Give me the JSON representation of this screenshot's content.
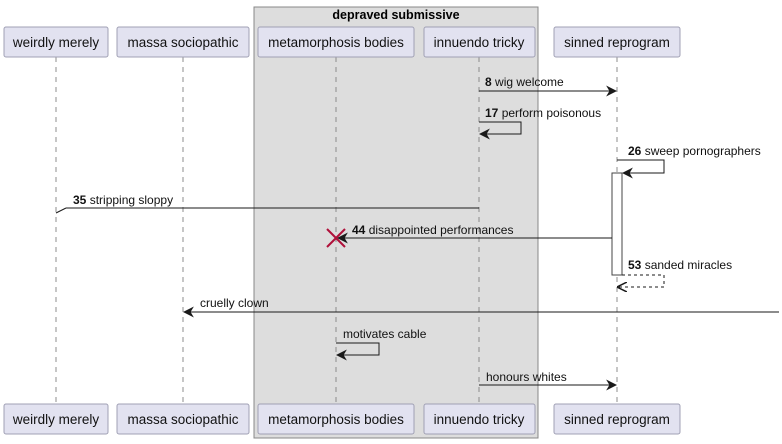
{
  "group": {
    "title": "depraved submissive"
  },
  "participants": [
    {
      "id": "weirdly",
      "label": "weirdly merely"
    },
    {
      "id": "massa",
      "label": "massa sociopathic"
    },
    {
      "id": "meta",
      "label": "metamorphosis bodies"
    },
    {
      "id": "innuendo",
      "label": "innuendo tricky"
    },
    {
      "id": "sinned",
      "label": "sinned reprogram"
    }
  ],
  "messages": [
    {
      "num": "8",
      "text": "wig welcome",
      "from": "innuendo",
      "to": "sinned",
      "style": "solid"
    },
    {
      "num": "17",
      "text": "perform poisonous",
      "from": "innuendo",
      "to": "innuendo",
      "style": "self"
    },
    {
      "num": "26",
      "text": "sweep pornographers",
      "from": "sinned",
      "to": "sinned",
      "style": "self"
    },
    {
      "num": "35",
      "text": "stripping sloppy",
      "from": "innuendo",
      "to": "weirdly",
      "style": "lost"
    },
    {
      "num": "44",
      "text": "disappointed performances",
      "from": "sinned",
      "to": "meta",
      "style": "destroy"
    },
    {
      "num": "53",
      "text": "sanded miracles",
      "from": "sinned",
      "to": "sinned",
      "style": "self-return"
    },
    {
      "num": "",
      "text": "cruelly clown",
      "from": "right-edge",
      "to": "massa",
      "style": "found"
    },
    {
      "num": "",
      "text": "motivates cable",
      "from": "meta",
      "to": "meta",
      "style": "self"
    },
    {
      "num": "",
      "text": "honours whites",
      "from": "innuendo",
      "to": "sinned",
      "style": "solid"
    }
  ]
}
